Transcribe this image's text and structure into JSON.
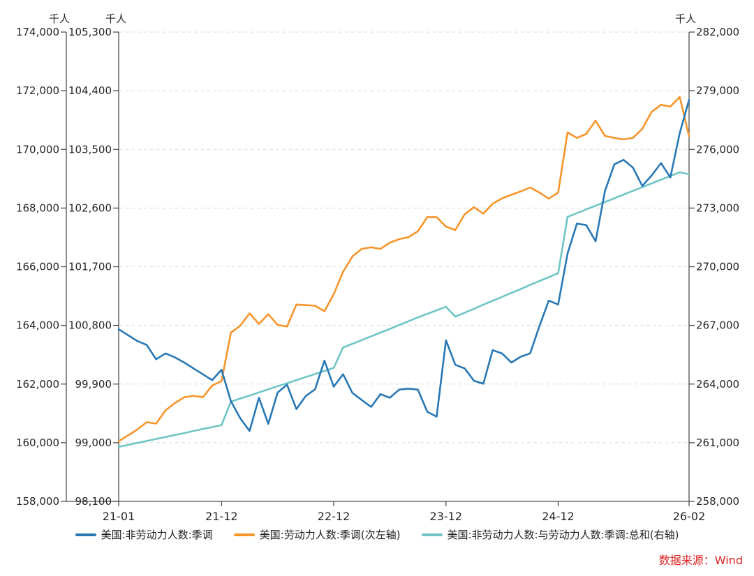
{
  "source": {
    "text": "数据来源：Wind",
    "color": "#E02222"
  },
  "chart_data": {
    "type": "line",
    "title": "",
    "x_start": "2021-01",
    "x_end": "2026-02",
    "x_points": 62,
    "x_tick_labels": [
      {
        "label": "21-01",
        "month_index": 0
      },
      {
        "label": "21-12",
        "month_index": 11
      },
      {
        "label": "22-12",
        "month_index": 23
      },
      {
        "label": "23-12",
        "month_index": 35
      },
      {
        "label": "24-12",
        "month_index": 47
      },
      {
        "label": "26-02",
        "month_index": 61
      }
    ],
    "grid": "dashed-horizontal",
    "legend_position": "bottom",
    "axes": {
      "secondary_left": {
        "unit": "千人",
        "min": 158000,
        "max": 174000,
        "step": 2000,
        "tick_labels": [
          "174,000",
          "172,000",
          "170,000",
          "168,000",
          "166,000",
          "164,000",
          "162,000",
          "160,000",
          "158,000"
        ]
      },
      "primary_left": {
        "unit": "千人",
        "min": 98100,
        "max": 105300,
        "step": 900,
        "tick_labels": [
          "105,300",
          "104,400",
          "103,500",
          "102,600",
          "101,700",
          "100,800",
          "99,900",
          "99,000",
          "98,100"
        ]
      },
      "right": {
        "unit": "千人",
        "min": 258000,
        "max": 282000,
        "step": 3000,
        "tick_labels": [
          "282,000",
          "279,000",
          "276,000",
          "273,000",
          "270,000",
          "267,000",
          "264,000",
          "261,000",
          "258,000"
        ]
      }
    },
    "series": [
      {
        "name": "美国:非劳动力人数:季调",
        "color": "#2878B5",
        "axis": "primary_left",
        "values": [
          100740,
          100650,
          100560,
          100500,
          100280,
          100370,
          100310,
          100230,
          100140,
          100050,
          99960,
          100120,
          99640,
          99375,
          99180,
          99690,
          99290,
          99770,
          99890,
          99515,
          99715,
          99820,
          100260,
          99860,
          100050,
          99765,
          99655,
          99550,
          99745,
          99690,
          99815,
          99830,
          99815,
          99475,
          99400,
          100570,
          100195,
          100140,
          99950,
          99905,
          100420,
          100370,
          100230,
          100320,
          100370,
          100790,
          101180,
          101120,
          101900,
          102360,
          102340,
          102090,
          102860,
          103270,
          103340,
          103220,
          102940,
          103100,
          103290,
          103070,
          103750,
          104260
        ]
      },
      {
        "name": "美国:劳动力人数:季调(次左轴)",
        "color": "#F7952B",
        "axis": "secondary_left",
        "values": [
          160050,
          160250,
          160450,
          160700,
          160650,
          161100,
          161350,
          161550,
          161600,
          161550,
          161950,
          162100,
          163750,
          163990,
          164410,
          164050,
          164380,
          164020,
          163960,
          164710,
          164690,
          164670,
          164480,
          165060,
          165830,
          166350,
          166610,
          166660,
          166610,
          166820,
          166940,
          167010,
          167210,
          167690,
          167690,
          167370,
          167250,
          167790,
          168030,
          167810,
          168150,
          168330,
          168450,
          168570,
          168700,
          168530,
          168320,
          168530,
          170580,
          170390,
          170530,
          170980,
          170460,
          170390,
          170340,
          170390,
          170700,
          171280,
          171520,
          171460,
          171790,
          170450
        ]
      },
      {
        "name": "美国:非劳动力人数:与劳动力人数:季调:总和(右轴)",
        "color": "#6FC5C3",
        "axis": "right",
        "values": [
          260790,
          260890,
          260990,
          261090,
          261190,
          261290,
          261390,
          261490,
          261600,
          261700,
          261800,
          261900,
          263100,
          263260,
          263410,
          263570,
          263730,
          263890,
          264040,
          264200,
          264360,
          264510,
          264670,
          264830,
          265870,
          266060,
          266250,
          266440,
          266630,
          266820,
          267020,
          267210,
          267410,
          267590,
          267770,
          267950,
          267450,
          267650,
          267850,
          268060,
          268260,
          268460,
          268660,
          268860,
          269070,
          269270,
          269470,
          269670,
          272550,
          272740,
          272930,
          273120,
          273310,
          273500,
          273690,
          273880,
          274070,
          274260,
          274450,
          274640,
          274830,
          274730
        ]
      }
    ]
  }
}
